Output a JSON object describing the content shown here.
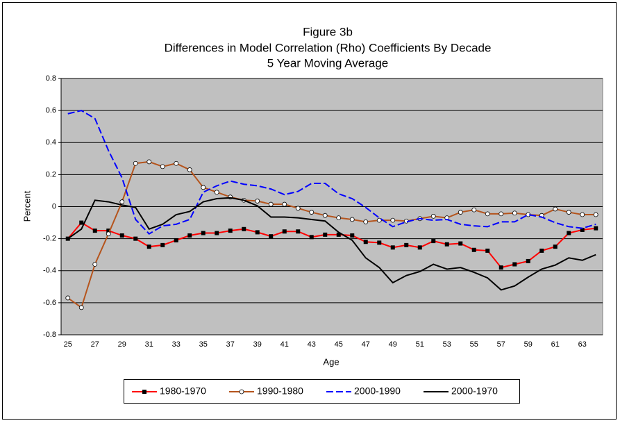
{
  "chart_data": {
    "type": "line",
    "title": [
      "Figure 3b",
      "Differences in Model Correlation (Rho) Coefficients By Decade",
      "5 Year Moving Average"
    ],
    "x_label": "Age",
    "y_label": "Percent",
    "categories": [
      25,
      null,
      27,
      null,
      29,
      null,
      31,
      null,
      33,
      null,
      35,
      null,
      37,
      null,
      39,
      null,
      41,
      null,
      43,
      null,
      45,
      null,
      47,
      null,
      49,
      null,
      51,
      null,
      53,
      null,
      55,
      null,
      57,
      null,
      59,
      null,
      61,
      null,
      63,
      null
    ],
    "ylim": [
      -0.8,
      0.8
    ],
    "yticks": [
      -0.8,
      -0.6,
      -0.4,
      -0.2,
      0,
      0.2,
      0.4,
      0.6,
      0.8
    ],
    "grid": true,
    "legend": "bottom",
    "series": [
      {
        "name": "1980-1970",
        "color": "#ff0000",
        "marker": "square",
        "dash": false,
        "values": [
          -0.2,
          -0.1,
          -0.15,
          -0.15,
          -0.18,
          -0.2,
          -0.25,
          -0.24,
          -0.21,
          -0.18,
          -0.165,
          -0.165,
          -0.15,
          -0.14,
          -0.16,
          -0.185,
          -0.155,
          -0.155,
          -0.19,
          -0.175,
          -0.175,
          -0.18,
          -0.22,
          -0.225,
          -0.255,
          -0.24,
          -0.255,
          -0.215,
          -0.235,
          -0.23,
          -0.27,
          -0.275,
          -0.38,
          -0.36,
          -0.34,
          -0.275,
          -0.25,
          -0.165,
          -0.145,
          -0.135
        ]
      },
      {
        "name": "1990-1980",
        "color": "#b5541c",
        "marker": "circle",
        "dash": false,
        "values": [
          -0.57,
          -0.63,
          -0.36,
          -0.17,
          0.03,
          0.27,
          0.28,
          0.25,
          0.27,
          0.23,
          0.12,
          0.09,
          0.06,
          0.04,
          0.035,
          0.015,
          0.015,
          -0.01,
          -0.035,
          -0.055,
          -0.07,
          -0.08,
          -0.095,
          -0.085,
          -0.085,
          -0.09,
          -0.075,
          -0.06,
          -0.07,
          -0.035,
          -0.02,
          -0.045,
          -0.045,
          -0.04,
          -0.05,
          -0.055,
          -0.015,
          -0.035,
          -0.05,
          -0.05
        ]
      },
      {
        "name": "2000-1990",
        "color": "#0000ff",
        "marker": "none",
        "dash": true,
        "values": [
          0.58,
          0.6,
          0.55,
          0.35,
          0.18,
          -0.08,
          -0.17,
          -0.12,
          -0.11,
          -0.08,
          0.09,
          0.13,
          0.16,
          0.14,
          0.13,
          0.11,
          0.075,
          0.095,
          0.145,
          0.145,
          0.08,
          0.05,
          -0.005,
          -0.07,
          -0.125,
          -0.095,
          -0.075,
          -0.085,
          -0.08,
          -0.11,
          -0.12,
          -0.125,
          -0.095,
          -0.095,
          -0.05,
          -0.065,
          -0.1,
          -0.125,
          -0.135,
          -0.11
        ]
      },
      {
        "name": "2000-1970",
        "color": "#000000",
        "marker": "none",
        "dash": false,
        "values": [
          -0.2,
          -0.14,
          0.04,
          0.03,
          0.01,
          -0.005,
          -0.14,
          -0.11,
          -0.05,
          -0.03,
          0.03,
          0.05,
          0.055,
          0.04,
          0.005,
          -0.065,
          -0.065,
          -0.07,
          -0.08,
          -0.09,
          -0.16,
          -0.21,
          -0.32,
          -0.38,
          -0.475,
          -0.43,
          -0.405,
          -0.36,
          -0.39,
          -0.38,
          -0.41,
          -0.445,
          -0.52,
          -0.495,
          -0.44,
          -0.39,
          -0.365,
          -0.32,
          -0.335,
          -0.3
        ]
      }
    ]
  }
}
